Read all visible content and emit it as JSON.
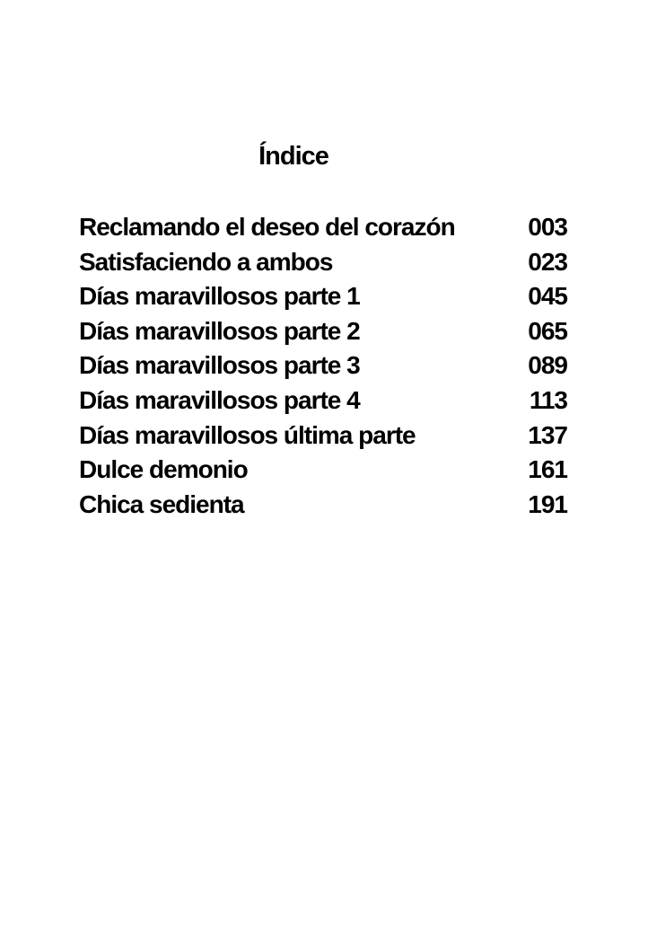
{
  "title": "Índice",
  "entries": [
    {
      "label": "Reclamando el deseo del corazón",
      "page": "003"
    },
    {
      "label": "Satisfaciendo a ambos",
      "page": "023"
    },
    {
      "label": "Días maravillosos parte 1",
      "page": "045"
    },
    {
      "label": "Días maravillosos parte 2",
      "page": "065"
    },
    {
      "label": "Días maravillosos parte 3",
      "page": "089"
    },
    {
      "label": "Días maravillosos parte 4",
      "page": "113"
    },
    {
      "label": "Días maravillosos última parte",
      "page": "137"
    },
    {
      "label": "Dulce demonio",
      "page": "161"
    },
    {
      "label": "Chica sedienta",
      "page": "191"
    }
  ]
}
